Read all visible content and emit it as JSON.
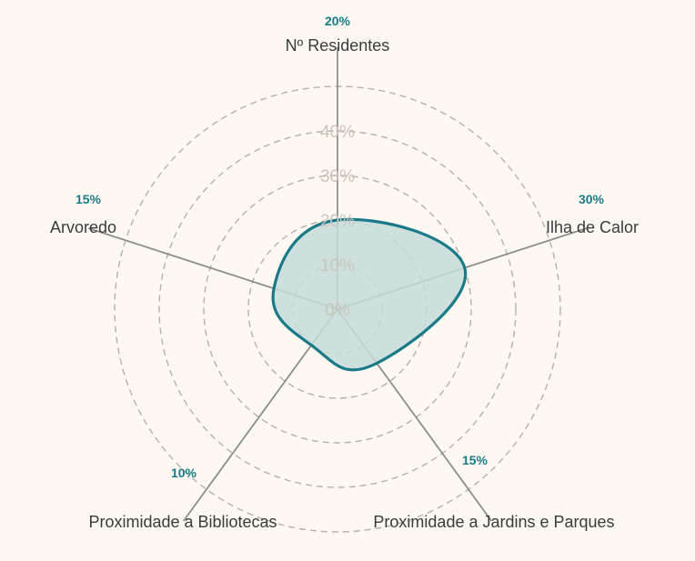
{
  "chart_data": {
    "type": "radar",
    "axes": [
      {
        "label": "Nº Residentes",
        "weight": "20%"
      },
      {
        "label": "Ilha de Calor",
        "weight": "30%"
      },
      {
        "label": "Proximidade a Jardins e Parques",
        "weight": "15%"
      },
      {
        "label": "Proximidade a Bibliotecas",
        "weight": "10%"
      },
      {
        "label": "Arvoredo",
        "weight": "15%"
      }
    ],
    "values": [
      20,
      30,
      15,
      10,
      15
    ],
    "rings": [
      "0%",
      "10%",
      "20%",
      "30%",
      "40%"
    ],
    "ring_values": [
      0,
      10,
      20,
      30,
      40
    ],
    "rmax": 40,
    "grid": true,
    "colors": {
      "series_stroke": "#1a7a87",
      "series_fill": "#c5dcd9",
      "weight_text": "#1a7a87",
      "axis_line": "#8e8e8e",
      "ring": "#b5b0a8"
    }
  }
}
